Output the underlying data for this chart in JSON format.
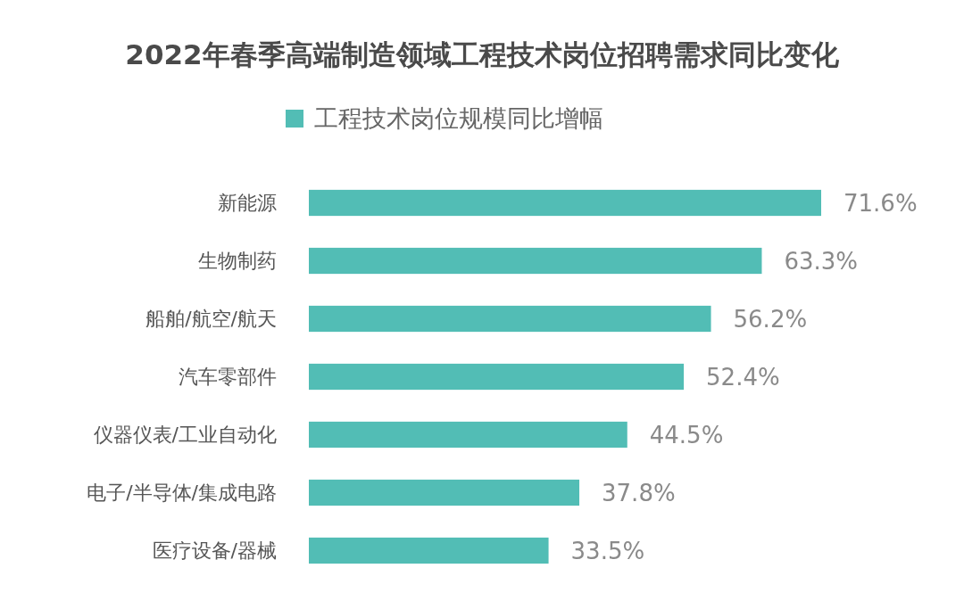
{
  "chart_data": {
    "type": "bar",
    "orientation": "horizontal",
    "title": "2022年春季高端制造领域工程技术岗位招聘需求同比变化",
    "categories": [
      "新能源",
      "生物制药",
      "船舶/航空/航天",
      "汽车零部件",
      "仪器仪表/工业自动化",
      "电子/半导体/集成电路",
      "医疗设备/器械"
    ],
    "series": [
      {
        "name": "工程技术岗位规模同比增幅",
        "color": "#52bdb5",
        "values": [
          71.6,
          63.3,
          56.2,
          52.4,
          44.5,
          37.8,
          33.5
        ],
        "value_labels": [
          "71.6%",
          "63.3%",
          "56.2%",
          "52.4%",
          "44.5%",
          "37.8%",
          "33.5%"
        ]
      }
    ],
    "legend": "top",
    "grid": false
  }
}
